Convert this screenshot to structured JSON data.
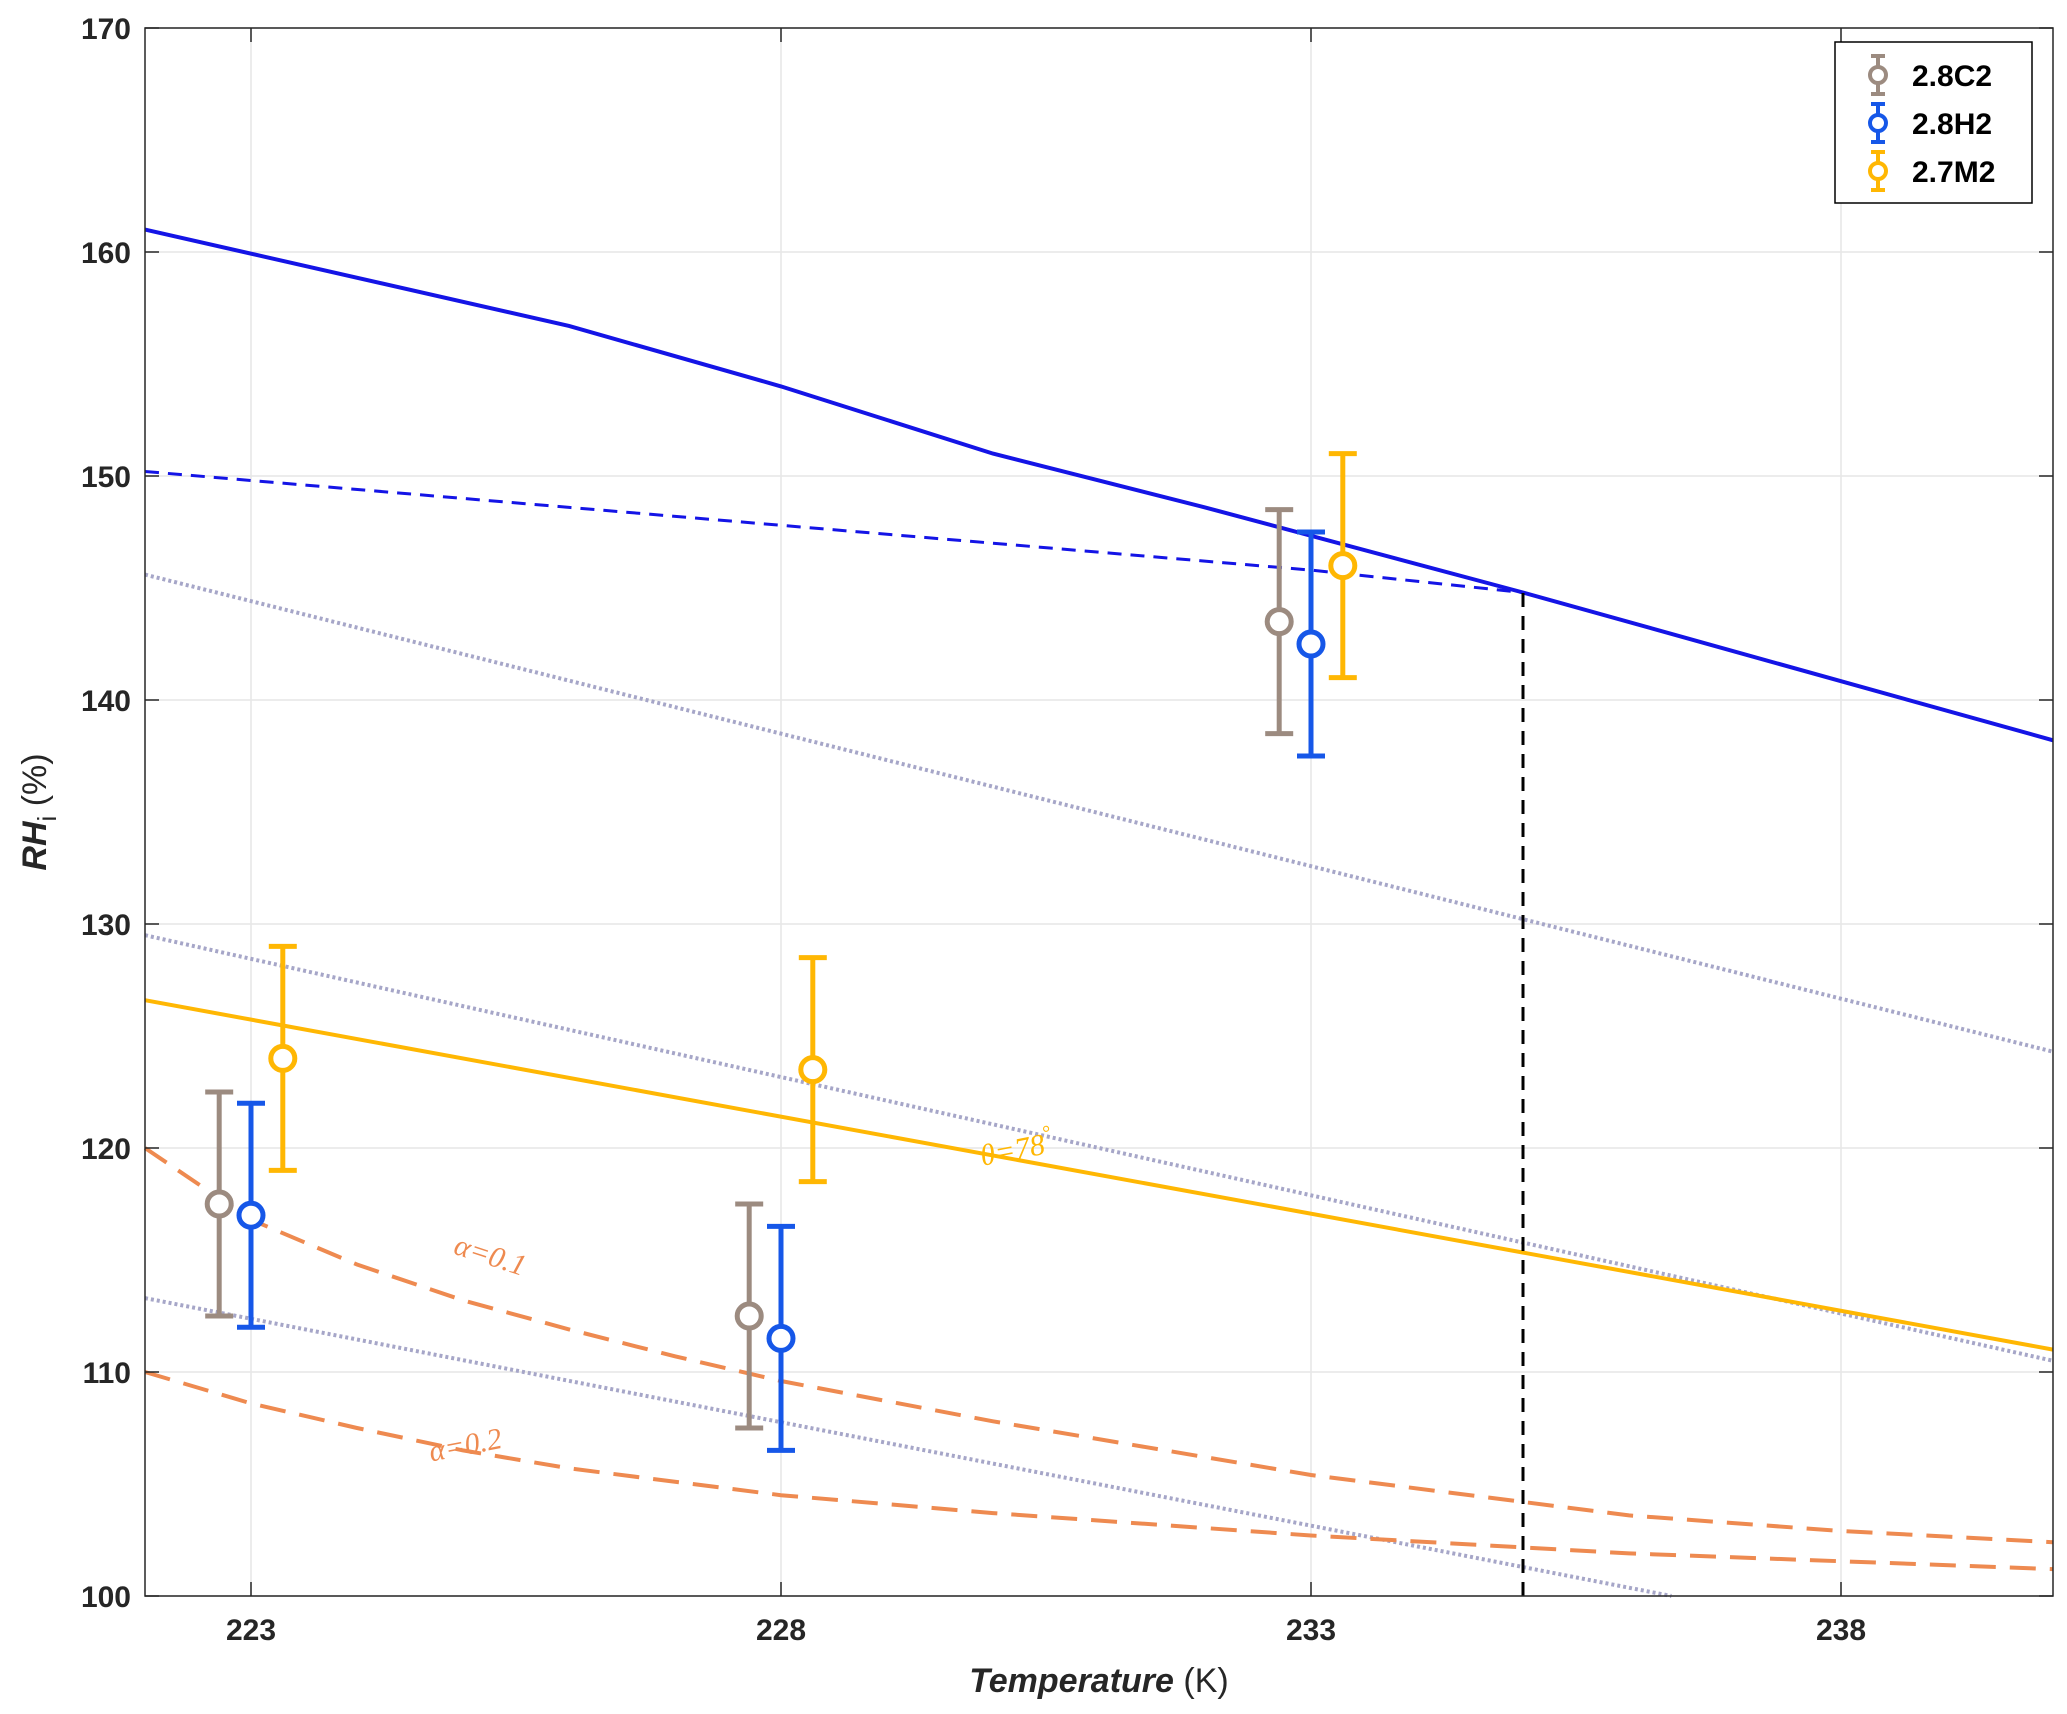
{
  "chart_data": {
    "type": "line",
    "title": "",
    "xlabel": {
      "main": "Temperature",
      "unit": " (K)"
    },
    "ylabel": {
      "main": "RH",
      "sub": "i",
      "unit": " (%)"
    },
    "xlim": [
      222,
      240
    ],
    "ylim": [
      100,
      170
    ],
    "xticks": [
      223,
      228,
      233,
      238
    ],
    "yticks": [
      100,
      110,
      120,
      130,
      140,
      150,
      160,
      170
    ],
    "grid": true,
    "legend_position": "top-right",
    "colors": {
      "c2": "#9C8B80",
      "h2": "#1657E8",
      "m2": "#FFB703",
      "blue_line": "#1414E6",
      "alpha_lines": "#EE8A50",
      "dotted": "#A6A6C8",
      "vline": "#000000",
      "grid": "#E6E6E6"
    },
    "errorbar_series": [
      {
        "name": "2.8C2",
        "color": "#9C8B80",
        "points": [
          {
            "x": 222.7,
            "y": 117.5,
            "lo": 112.5,
            "hi": 122.5
          },
          {
            "x": 227.7,
            "y": 112.5,
            "lo": 107.5,
            "hi": 117.5
          },
          {
            "x": 232.7,
            "y": 143.5,
            "lo": 138.5,
            "hi": 148.5
          }
        ]
      },
      {
        "name": "2.8H2",
        "color": "#1657E8",
        "points": [
          {
            "x": 223.0,
            "y": 117.0,
            "lo": 112.0,
            "hi": 122.0
          },
          {
            "x": 228.0,
            "y": 111.5,
            "lo": 106.5,
            "hi": 116.5
          },
          {
            "x": 233.0,
            "y": 142.5,
            "lo": 137.5,
            "hi": 147.5
          }
        ]
      },
      {
        "name": "2.7M2",
        "color": "#FFB703",
        "points": [
          {
            "x": 223.3,
            "y": 124.0,
            "lo": 119.0,
            "hi": 129.0
          },
          {
            "x": 228.3,
            "y": 123.5,
            "lo": 118.5,
            "hi": 128.5
          },
          {
            "x": 233.3,
            "y": 146.0,
            "lo": 141.0,
            "hi": 151.0
          }
        ]
      }
    ],
    "lines": [
      {
        "id": "blue-solid",
        "color": "#1414E6",
        "style": "solid",
        "width": 4,
        "points": [
          [
            222,
            161
          ],
          [
            226,
            156.7
          ],
          [
            228,
            154
          ],
          [
            230,
            151
          ],
          [
            232,
            148.6
          ],
          [
            235,
            144.8
          ],
          [
            240,
            138.2
          ]
        ]
      },
      {
        "id": "blue-dashed",
        "color": "#1414E6",
        "style": "dashed",
        "width": 3,
        "points": [
          [
            222,
            150.2
          ],
          [
            226,
            148.6
          ],
          [
            230,
            147
          ],
          [
            233,
            145.8
          ],
          [
            235,
            144.8
          ]
        ]
      },
      {
        "id": "dotted-upper",
        "color": "#A6A6C8",
        "style": "dotted",
        "width": 4,
        "points": [
          [
            222,
            145.6
          ],
          [
            240,
            124.3
          ]
        ]
      },
      {
        "id": "dotted-middle",
        "color": "#A6A6C8",
        "style": "dotted",
        "width": 4,
        "points": [
          [
            222,
            129.5
          ],
          [
            240,
            110.5
          ]
        ]
      },
      {
        "id": "dotted-lower",
        "color": "#A6A6C8",
        "style": "dotted",
        "width": 4,
        "points": [
          [
            222,
            113.3
          ],
          [
            236.4,
            100
          ]
        ]
      },
      {
        "id": "yellow-theta",
        "color": "#FFB703",
        "style": "solid",
        "width": 4,
        "points": [
          [
            222,
            126.6
          ],
          [
            240,
            111.0
          ]
        ]
      },
      {
        "id": "alpha-0.1",
        "color": "#EE8A50",
        "style": "dashed-long",
        "width": 4,
        "points": [
          [
            222,
            120
          ],
          [
            223,
            116.8
          ],
          [
            224,
            114.8
          ],
          [
            225,
            113.2
          ],
          [
            226,
            111.9
          ],
          [
            227,
            110.7
          ],
          [
            228,
            109.6
          ],
          [
            230,
            107.8
          ],
          [
            233,
            105.4
          ],
          [
            236,
            103.6
          ],
          [
            238,
            102.9
          ],
          [
            240,
            102.4
          ]
        ]
      },
      {
        "id": "alpha-0.2",
        "color": "#EE8A50",
        "style": "dashed-long",
        "width": 4,
        "points": [
          [
            222,
            110
          ],
          [
            223,
            108.6
          ],
          [
            224,
            107.5
          ],
          [
            225,
            106.5
          ],
          [
            226,
            105.7
          ],
          [
            228,
            104.5
          ],
          [
            230,
            103.7
          ],
          [
            233,
            102.7
          ],
          [
            236,
            101.9
          ],
          [
            240,
            101.2
          ]
        ]
      },
      {
        "id": "vline",
        "color": "#000000",
        "style": "dashed",
        "width": 3,
        "points": [
          [
            235,
            100
          ],
          [
            235,
            144.8
          ]
        ]
      }
    ],
    "annotations": [
      {
        "id": "theta",
        "text": "θ=78",
        "sup": "°",
        "x": 229.9,
        "y": 119.2,
        "color": "#FFB703",
        "rotate": -11
      },
      {
        "id": "alpha1",
        "text": "α=0.1",
        "x": 224.9,
        "y": 115.3,
        "color": "#EE8A50",
        "rotate": 18
      },
      {
        "id": "alpha2",
        "text": "α=0.2",
        "x": 224.7,
        "y": 106.0,
        "color": "#EE8A50",
        "rotate": -11
      }
    ]
  }
}
